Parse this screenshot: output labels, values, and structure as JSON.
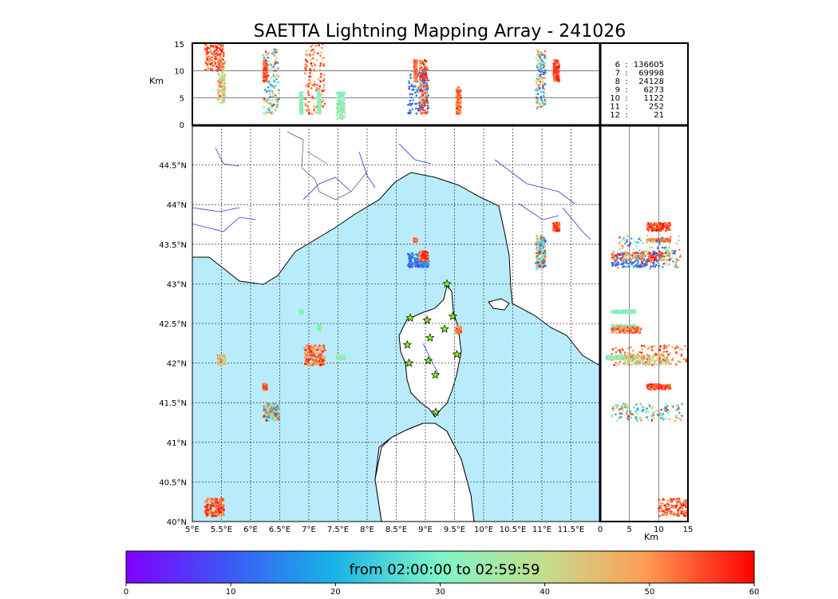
{
  "chart_data": {
    "type": "scatter",
    "title": "SAETTA Lightning Mapping Array - 241026",
    "map": {
      "lon_range": [
        5.0,
        12.0
      ],
      "lat_range": [
        40.0,
        45.0
      ],
      "x_ticks": [
        "5°E",
        "5.5°E",
        "6°E",
        "6.5°E",
        "7°E",
        "7.5°E",
        "8°E",
        "8.5°E",
        "9°E",
        "9.5°E",
        "10°E",
        "10.5°E",
        "11°E",
        "11.5°E"
      ],
      "y_ticks": [
        "40°N",
        "40.5°N",
        "41°N",
        "41.5°N",
        "42°N",
        "42.5°N",
        "43°N",
        "43.5°N",
        "44°N",
        "44.5°N"
      ],
      "grid": true,
      "sea_color": "#b9ecfb",
      "land_color": "#ffffff",
      "river_color": "#3333dd"
    },
    "altitude_panel": {
      "ylabel": "Km",
      "y_range": [
        0,
        15
      ],
      "y_ticks": [
        "0",
        "5",
        "10",
        "15"
      ],
      "gridlines_at": [
        5,
        10
      ]
    },
    "side_panel": {
      "xlabel": "Km",
      "x_range": [
        0,
        15
      ],
      "x_ticks": [
        "0",
        "5",
        "10",
        "15"
      ],
      "gridlines_at": [
        5,
        10
      ]
    },
    "station_counts": [
      {
        "stations": "6",
        "sep": ":",
        "count": "136605",
        "color": "#000000"
      },
      {
        "stations": "7",
        "sep": ":",
        "count": "69998",
        "color": "#ff0000"
      },
      {
        "stations": "8",
        "sep": ":",
        "count": "24128",
        "color": "#000000"
      },
      {
        "stations": "9",
        "sep": ":",
        "count": "6273",
        "color": "#000000"
      },
      {
        "stations": "10",
        "sep": ":",
        "count": "1122",
        "color": "#000000"
      },
      {
        "stations": "11",
        "sep": ":",
        "count": "252",
        "color": "#000000"
      },
      {
        "stations": "12",
        "sep": ":",
        "count": "21",
        "color": "#000000"
      }
    ],
    "colorbar": {
      "label": "from 02:00:00 to 02:59:59",
      "range": [
        0,
        60
      ],
      "ticks": [
        "0",
        "10",
        "20",
        "30",
        "40",
        "50",
        "60"
      ],
      "colormap": "rainbow"
    },
    "stations": [
      {
        "lon": 9.37,
        "lat": 43.0
      },
      {
        "lon": 8.74,
        "lat": 42.57
      },
      {
        "lon": 9.03,
        "lat": 42.54
      },
      {
        "lon": 9.47,
        "lat": 42.59
      },
      {
        "lon": 9.33,
        "lat": 42.43
      },
      {
        "lon": 9.08,
        "lat": 42.32
      },
      {
        "lon": 8.69,
        "lat": 42.23
      },
      {
        "lon": 9.54,
        "lat": 42.11
      },
      {
        "lon": 8.72,
        "lat": 42.0
      },
      {
        "lon": 9.05,
        "lat": 42.03
      },
      {
        "lon": 9.17,
        "lat": 41.85
      },
      {
        "lon": 9.18,
        "lat": 41.38
      }
    ],
    "cells": [
      {
        "lon": 8.88,
        "lat": 43.3,
        "w": 0.35,
        "h": 0.18,
        "minutes": [
          6,
          20
        ],
        "alt": [
          2,
          10
        ]
      },
      {
        "lon": 8.97,
        "lat": 43.35,
        "w": 0.14,
        "h": 0.12,
        "minutes": [
          46,
          60
        ],
        "alt": [
          2,
          12
        ]
      },
      {
        "lon": 8.83,
        "lat": 43.55,
        "w": 0.05,
        "h": 0.04,
        "minutes": [
          48,
          56
        ],
        "alt": [
          8,
          12
        ]
      },
      {
        "lon": 10.98,
        "lat": 43.4,
        "w": 0.16,
        "h": 0.42,
        "minutes": [
          8,
          58
        ],
        "alt": [
          3,
          14
        ]
      },
      {
        "lon": 11.25,
        "lat": 43.72,
        "w": 0.1,
        "h": 0.1,
        "minutes": [
          50,
          60
        ],
        "alt": [
          8,
          12
        ]
      },
      {
        "lon": 7.1,
        "lat": 42.1,
        "w": 0.35,
        "h": 0.25,
        "minutes": [
          44,
          60
        ],
        "alt": [
          2,
          15
        ]
      },
      {
        "lon": 7.55,
        "lat": 42.07,
        "w": 0.14,
        "h": 0.05,
        "minutes": [
          28,
          38
        ],
        "alt": [
          1,
          6
        ]
      },
      {
        "lon": 7.18,
        "lat": 42.45,
        "w": 0.05,
        "h": 0.07,
        "minutes": [
          28,
          36
        ],
        "alt": [
          2,
          6
        ]
      },
      {
        "lon": 6.87,
        "lat": 42.65,
        "w": 0.05,
        "h": 0.04,
        "minutes": [
          28,
          36
        ],
        "alt": [
          2,
          6
        ]
      },
      {
        "lon": 5.5,
        "lat": 42.04,
        "w": 0.13,
        "h": 0.12,
        "minutes": [
          30,
          56
        ],
        "alt": [
          4,
          12
        ]
      },
      {
        "lon": 6.35,
        "lat": 41.38,
        "w": 0.28,
        "h": 0.22,
        "minutes": [
          14,
          60
        ],
        "alt": [
          2,
          14
        ]
      },
      {
        "lon": 6.25,
        "lat": 41.7,
        "w": 0.06,
        "h": 0.07,
        "minutes": [
          50,
          60
        ],
        "alt": [
          8,
          12
        ]
      },
      {
        "lon": 9.57,
        "lat": 42.42,
        "w": 0.08,
        "h": 0.08,
        "minutes": [
          44,
          60
        ],
        "alt": [
          2,
          7
        ]
      },
      {
        "lon": 5.38,
        "lat": 40.18,
        "w": 0.32,
        "h": 0.22,
        "minutes": [
          48,
          60
        ],
        "alt": [
          10,
          15
        ]
      }
    ]
  }
}
